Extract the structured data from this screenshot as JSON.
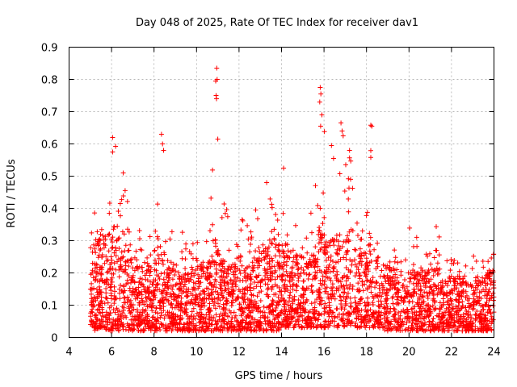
{
  "chart_data": {
    "type": "scatter",
    "title": "Day 048 of 2025, Rate Of TEC Index for receiver dav1",
    "xlabel": "GPS time / hours",
    "ylabel": "ROTI / TECUs",
    "xlim": [
      4,
      24
    ],
    "ylim": [
      0,
      0.9
    ],
    "x_ticks": [
      4,
      6,
      8,
      10,
      12,
      14,
      16,
      18,
      20,
      22,
      24
    ],
    "y_ticks": [
      0,
      0.1,
      0.2,
      0.3,
      0.4,
      0.5,
      0.6,
      0.7,
      0.8,
      0.9
    ],
    "x_tick_labels": [
      "4",
      "6",
      "8",
      "10",
      "12",
      "14",
      "16",
      "18",
      "20",
      "22",
      "24"
    ],
    "y_tick_labels": [
      "0",
      "0.1",
      "0.2",
      "0.3",
      "0.4",
      "0.5",
      "0.6",
      "0.7",
      "0.8",
      "0.9"
    ],
    "grid": true,
    "marker": "+",
    "series_color": "#ff0000",
    "envelope": {
      "x": [
        5.0,
        5.2,
        5.5,
        6.0,
        6.1,
        6.5,
        7.0,
        7.5,
        8.0,
        8.4,
        8.6,
        9.0,
        9.5,
        10.0,
        10.5,
        10.9,
        11.1,
        11.5,
        12.0,
        12.5,
        13.0,
        13.3,
        13.8,
        14.1,
        14.5,
        15.0,
        15.5,
        15.8,
        16.3,
        16.8,
        17.2,
        17.5,
        18.0,
        18.2,
        18.5,
        19.0,
        19.5,
        20.0,
        20.5,
        21.0,
        21.3,
        21.7,
        22.0,
        22.5,
        23.0,
        23.5,
        23.8,
        24.0
      ],
      "upper": [
        0.35,
        0.4,
        0.38,
        0.45,
        0.62,
        0.5,
        0.4,
        0.35,
        0.3,
        0.62,
        0.45,
        0.3,
        0.35,
        0.3,
        0.3,
        0.83,
        0.48,
        0.43,
        0.42,
        0.4,
        0.44,
        0.48,
        0.45,
        0.52,
        0.4,
        0.42,
        0.38,
        0.77,
        0.58,
        0.66,
        0.58,
        0.45,
        0.48,
        0.65,
        0.4,
        0.37,
        0.3,
        0.35,
        0.3,
        0.3,
        0.35,
        0.3,
        0.25,
        0.3,
        0.25,
        0.3,
        0.33,
        0.28
      ],
      "typical_max": [
        0.22,
        0.3,
        0.3,
        0.32,
        0.35,
        0.3,
        0.25,
        0.22,
        0.22,
        0.3,
        0.25,
        0.2,
        0.2,
        0.22,
        0.22,
        0.3,
        0.25,
        0.22,
        0.22,
        0.22,
        0.25,
        0.28,
        0.28,
        0.3,
        0.26,
        0.25,
        0.25,
        0.35,
        0.3,
        0.32,
        0.3,
        0.28,
        0.28,
        0.3,
        0.25,
        0.22,
        0.2,
        0.2,
        0.2,
        0.2,
        0.22,
        0.2,
        0.18,
        0.18,
        0.16,
        0.18,
        0.22,
        0.2
      ],
      "lower": [
        0.03,
        0.02,
        0.03,
        0.02,
        0.02,
        0.02,
        0.02,
        0.02,
        0.02,
        0.02,
        0.02,
        0.02,
        0.02,
        0.02,
        0.02,
        0.02,
        0.02,
        0.02,
        0.02,
        0.02,
        0.02,
        0.02,
        0.02,
        0.03,
        0.03,
        0.03,
        0.03,
        0.03,
        0.03,
        0.03,
        0.03,
        0.03,
        0.03,
        0.03,
        0.03,
        0.02,
        0.02,
        0.02,
        0.02,
        0.02,
        0.02,
        0.02,
        0.02,
        0.02,
        0.02,
        0.02,
        0.02,
        0.02
      ]
    },
    "notable_points": [
      {
        "x": 6.05,
        "y": 0.62
      },
      {
        "x": 6.05,
        "y": 0.575
      },
      {
        "x": 6.55,
        "y": 0.51
      },
      {
        "x": 8.35,
        "y": 0.63
      },
      {
        "x": 8.4,
        "y": 0.6
      },
      {
        "x": 8.45,
        "y": 0.58
      },
      {
        "x": 10.95,
        "y": 0.835
      },
      {
        "x": 10.97,
        "y": 0.8
      },
      {
        "x": 10.9,
        "y": 0.795
      },
      {
        "x": 10.92,
        "y": 0.75
      },
      {
        "x": 10.94,
        "y": 0.74
      },
      {
        "x": 11.0,
        "y": 0.615
      },
      {
        "x": 15.82,
        "y": 0.775
      },
      {
        "x": 15.85,
        "y": 0.755
      },
      {
        "x": 15.8,
        "y": 0.73
      },
      {
        "x": 15.9,
        "y": 0.69
      },
      {
        "x": 15.84,
        "y": 0.655
      },
      {
        "x": 16.8,
        "y": 0.665
      },
      {
        "x": 16.85,
        "y": 0.64
      },
      {
        "x": 16.9,
        "y": 0.625
      },
      {
        "x": 18.2,
        "y": 0.658
      },
      {
        "x": 18.25,
        "y": 0.655
      },
      {
        "x": 18.2,
        "y": 0.558
      },
      {
        "x": 16.35,
        "y": 0.595
      },
      {
        "x": 17.2,
        "y": 0.58
      },
      {
        "x": 16.45,
        "y": 0.555
      },
      {
        "x": 14.1,
        "y": 0.525
      },
      {
        "x": 13.3,
        "y": 0.48
      }
    ]
  }
}
